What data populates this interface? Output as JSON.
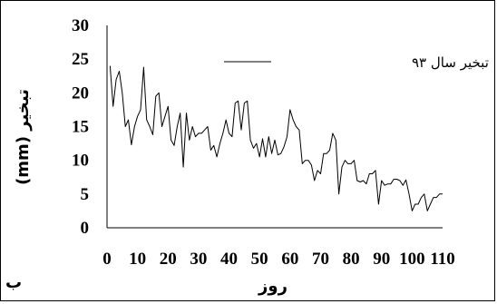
{
  "chart_data": {
    "type": "line",
    "title": "",
    "xlabel": "روز",
    "ylabel": "(mm) تبخیر",
    "panel_label": "ب",
    "xlim": [
      0,
      110
    ],
    "ylim": [
      0,
      30
    ],
    "x_ticks": [
      "0",
      "10",
      "20",
      "30",
      "40",
      "50",
      "60",
      "70",
      "80",
      "90",
      "100",
      "110"
    ],
    "y_ticks": [
      "0",
      "5",
      "10",
      "15",
      "20",
      "25",
      "30"
    ],
    "grid": false,
    "legend_position": "top-right",
    "series": [
      {
        "name": "تبخیر سال ۹۳",
        "color": "#000000",
        "x": [
          1,
          2,
          3,
          4,
          5,
          6,
          7,
          8,
          9,
          10,
          11,
          12,
          13,
          14,
          15,
          16,
          17,
          18,
          19,
          20,
          21,
          22,
          23,
          24,
          25,
          26,
          27,
          28,
          29,
          30,
          31,
          32,
          33,
          34,
          35,
          36,
          37,
          38,
          39,
          40,
          41,
          42,
          43,
          44,
          45,
          46,
          47,
          48,
          49,
          50,
          51,
          52,
          53,
          54,
          55,
          56,
          57,
          58,
          59,
          60,
          61,
          62,
          63,
          64,
          65,
          66,
          67,
          68,
          69,
          70,
          71,
          72,
          73,
          74,
          75,
          76,
          77,
          78,
          79,
          80,
          81,
          82,
          83,
          84,
          85,
          86,
          87,
          88,
          89,
          90,
          91,
          92,
          93,
          94,
          95,
          96,
          97,
          98,
          99,
          100,
          101,
          102,
          103,
          104,
          105,
          106,
          107,
          108,
          109,
          110
        ],
        "values": [
          24,
          18,
          22,
          23.2,
          20,
          15,
          16,
          12.3,
          15,
          16.5,
          17.5,
          23.8,
          16,
          15,
          13.8,
          19.5,
          20,
          15,
          16.5,
          18,
          13,
          12.2,
          15,
          17,
          9,
          17,
          13,
          15,
          13.5,
          14,
          14,
          14.5,
          15,
          11.5,
          12.2,
          10.5,
          12.5,
          14,
          16,
          14,
          13.5,
          18.5,
          18.8,
          14.5,
          18.5,
          18.8,
          13,
          11.8,
          12.5,
          10.5,
          13.2,
          10.5,
          13.5,
          11,
          13,
          10.8,
          11,
          12,
          13.5,
          17.5,
          16,
          15,
          14.5,
          9.5,
          10,
          10,
          9.3,
          7,
          8.5,
          8,
          11,
          11,
          11.5,
          14,
          13,
          5,
          9,
          10,
          9.5,
          9.5,
          10,
          7,
          6.8,
          7,
          6.5,
          8,
          8,
          8.5,
          3.5,
          7,
          6.3,
          6.5,
          6.5,
          7.2,
          7.2,
          7,
          6.3,
          7.1,
          5,
          2.5,
          3.5,
          3.5,
          4.5,
          5,
          2.5,
          3.5,
          4.5,
          4.5,
          5,
          5
        ]
      }
    ]
  }
}
